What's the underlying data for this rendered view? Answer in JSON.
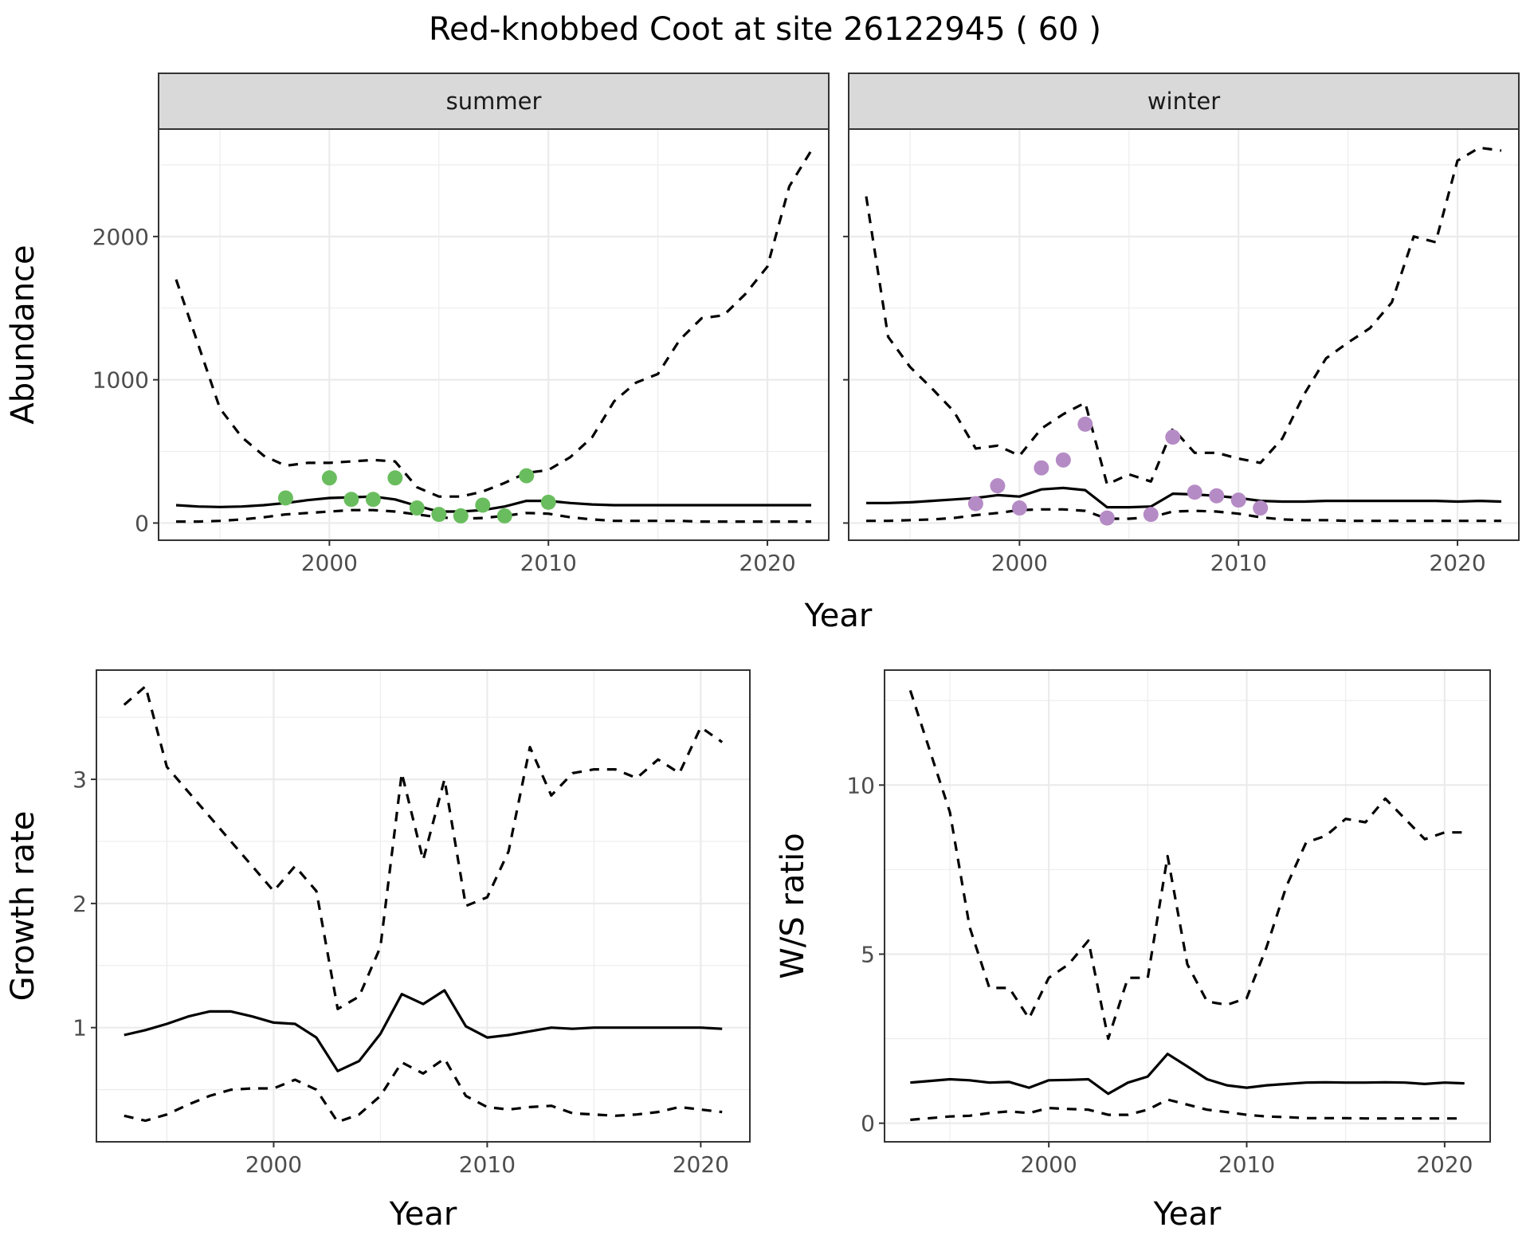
{
  "title": "Red-knobbed Coot at site 26122945 ( 60 )",
  "colors": {
    "summer_points": "#6abd5e",
    "winter_points": "#b58bc5",
    "strip_bg": "#d9d9d9"
  },
  "chart_data": [
    {
      "type": "line",
      "panel": "summer",
      "strip_label": "summer",
      "ylabel": "Abundance",
      "xlabel": "",
      "xlim": [
        1992.2,
        2022.8
      ],
      "ylim": [
        -120,
        2750
      ],
      "x_ticks": [
        2000,
        2010,
        2020
      ],
      "y_ticks": [
        0,
        1000,
        2000
      ],
      "x": [
        1993,
        1994,
        1995,
        1996,
        1997,
        1998,
        1999,
        2000,
        2001,
        2002,
        2003,
        2004,
        2005,
        2006,
        2007,
        2008,
        2009,
        2010,
        2011,
        2012,
        2013,
        2014,
        2015,
        2016,
        2017,
        2018,
        2019,
        2020,
        2021,
        2022
      ],
      "series": [
        {
          "role": "mean",
          "values": [
            125,
            115,
            112,
            115,
            125,
            140,
            160,
            175,
            180,
            185,
            165,
            120,
            80,
            80,
            90,
            115,
            155,
            155,
            140,
            130,
            125,
            125,
            125,
            125,
            125,
            125,
            125,
            125,
            125,
            125
          ]
        },
        {
          "role": "upper",
          "values": [
            1700,
            1250,
            800,
            600,
            470,
            400,
            420,
            420,
            430,
            440,
            430,
            250,
            185,
            185,
            220,
            280,
            350,
            370,
            460,
            600,
            850,
            980,
            1040,
            1280,
            1430,
            1450,
            1600,
            1790,
            2350,
            2600
          ]
        },
        {
          "role": "lower",
          "values": [
            10,
            10,
            15,
            25,
            40,
            60,
            70,
            80,
            90,
            90,
            80,
            60,
            40,
            30,
            35,
            50,
            70,
            65,
            40,
            25,
            15,
            15,
            15,
            15,
            10,
            10,
            10,
            10,
            10,
            10
          ]
        }
      ],
      "points": {
        "x": [
          1998,
          2000,
          2001,
          2002,
          2003,
          2004,
          2005,
          2006,
          2007,
          2008,
          2009,
          2010
        ],
        "y": [
          175,
          315,
          165,
          165,
          315,
          105,
          60,
          50,
          125,
          50,
          330,
          145
        ]
      }
    },
    {
      "type": "line",
      "panel": "winter",
      "strip_label": "winter",
      "ylabel": "",
      "xlabel": "",
      "xlim": [
        1992.2,
        2022.8
      ],
      "ylim": [
        -120,
        2750
      ],
      "x_ticks": [
        2000,
        2010,
        2020
      ],
      "y_ticks": [
        0,
        1000,
        2000
      ],
      "x": [
        1993,
        1994,
        1995,
        1996,
        1997,
        1998,
        1999,
        2000,
        2001,
        2002,
        2003,
        2004,
        2005,
        2006,
        2007,
        2008,
        2009,
        2010,
        2011,
        2012,
        2013,
        2014,
        2015,
        2016,
        2017,
        2018,
        2019,
        2020,
        2021,
        2022
      ],
      "series": [
        {
          "role": "mean",
          "values": [
            140,
            140,
            145,
            155,
            165,
            175,
            195,
            185,
            235,
            245,
            230,
            110,
            110,
            115,
            205,
            200,
            190,
            175,
            155,
            150,
            150,
            155,
            155,
            155,
            155,
            155,
            155,
            150,
            155,
            150
          ]
        },
        {
          "role": "upper",
          "values": [
            2280,
            1300,
            1090,
            940,
            780,
            520,
            540,
            470,
            660,
            760,
            840,
            270,
            340,
            290,
            660,
            490,
            490,
            450,
            420,
            590,
            900,
            1150,
            1260,
            1360,
            1540,
            2000,
            1960,
            2530,
            2620,
            2600
          ]
        },
        {
          "role": "lower",
          "values": [
            15,
            15,
            20,
            25,
            35,
            55,
            70,
            90,
            95,
            95,
            85,
            30,
            30,
            40,
            80,
            85,
            80,
            65,
            40,
            25,
            20,
            20,
            15,
            15,
            15,
            15,
            15,
            15,
            15,
            15
          ]
        }
      ],
      "points": {
        "x": [
          1998,
          1999,
          2000,
          2001,
          2002,
          2003,
          2004,
          2006,
          2007,
          2008,
          2009,
          2010,
          2011
        ],
        "y": [
          135,
          260,
          105,
          385,
          440,
          690,
          35,
          60,
          600,
          215,
          190,
          160,
          105
        ]
      }
    },
    {
      "type": "line",
      "panel": "growth",
      "ylabel": "Growth rate",
      "xlabel": "Year",
      "xlim": [
        1991.7,
        2022.3
      ],
      "ylim": [
        0.08,
        3.88
      ],
      "x_ticks": [
        2000,
        2010,
        2020
      ],
      "y_ticks": [
        1,
        2,
        3
      ],
      "x": [
        1993,
        1994,
        1995,
        1996,
        1997,
        1998,
        1999,
        2000,
        2001,
        2002,
        2003,
        2004,
        2005,
        2006,
        2007,
        2008,
        2009,
        2010,
        2011,
        2012,
        2013,
        2014,
        2015,
        2016,
        2017,
        2018,
        2019,
        2020,
        2021
      ],
      "series": [
        {
          "role": "mean",
          "values": [
            0.94,
            0.98,
            1.03,
            1.09,
            1.13,
            1.13,
            1.09,
            1.04,
            1.03,
            0.92,
            0.65,
            0.73,
            0.95,
            1.27,
            1.19,
            1.3,
            1.01,
            0.92,
            0.94,
            0.97,
            1.0,
            0.99,
            1.0,
            1.0,
            1.0,
            1.0,
            1.0,
            1.0,
            0.99
          ]
        },
        {
          "role": "upper",
          "values": [
            3.6,
            3.75,
            3.1,
            2.9,
            2.7,
            2.5,
            2.3,
            2.1,
            2.3,
            2.1,
            1.15,
            1.25,
            1.65,
            3.05,
            2.35,
            3.0,
            1.98,
            2.05,
            2.42,
            3.26,
            2.87,
            3.05,
            3.08,
            3.08,
            3.01,
            3.16,
            3.05,
            3.42,
            3.3
          ]
        },
        {
          "role": "lower",
          "values": [
            0.29,
            0.25,
            0.3,
            0.38,
            0.45,
            0.5,
            0.51,
            0.51,
            0.58,
            0.5,
            0.24,
            0.3,
            0.45,
            0.72,
            0.63,
            0.75,
            0.45,
            0.36,
            0.34,
            0.36,
            0.37,
            0.31,
            0.3,
            0.29,
            0.3,
            0.32,
            0.36,
            0.34,
            0.32
          ]
        }
      ]
    },
    {
      "type": "line",
      "panel": "ws_ratio",
      "ylabel": "W/S ratio",
      "xlabel": "Year",
      "xlim": [
        1991.7,
        2022.3
      ],
      "ylim": [
        -0.55,
        13.4
      ],
      "x_ticks": [
        2000,
        2010,
        2020
      ],
      "y_ticks": [
        0,
        5,
        10
      ],
      "x": [
        1993,
        1994,
        1995,
        1996,
        1997,
        1998,
        1999,
        2000,
        2001,
        2002,
        2003,
        2004,
        2005,
        2006,
        2007,
        2008,
        2009,
        2010,
        2011,
        2012,
        2013,
        2014,
        2015,
        2016,
        2017,
        2018,
        2019,
        2020,
        2021
      ],
      "series": [
        {
          "role": "mean",
          "values": [
            1.2,
            1.25,
            1.3,
            1.27,
            1.2,
            1.22,
            1.05,
            1.27,
            1.28,
            1.3,
            0.87,
            1.2,
            1.38,
            2.05,
            1.68,
            1.3,
            1.12,
            1.05,
            1.12,
            1.16,
            1.2,
            1.21,
            1.2,
            1.2,
            1.21,
            1.2,
            1.16,
            1.2,
            1.18
          ]
        },
        {
          "role": "upper",
          "values": [
            12.8,
            11.0,
            9.2,
            5.8,
            4.0,
            4.0,
            3.1,
            4.3,
            4.7,
            5.4,
            2.5,
            4.3,
            4.3,
            7.9,
            4.7,
            3.6,
            3.5,
            3.7,
            5.2,
            7.0,
            8.3,
            8.5,
            9.0,
            8.9,
            9.6,
            9.0,
            8.4,
            8.6,
            8.6
          ]
        },
        {
          "role": "lower",
          "values": [
            0.1,
            0.15,
            0.2,
            0.22,
            0.3,
            0.35,
            0.3,
            0.45,
            0.42,
            0.4,
            0.25,
            0.25,
            0.4,
            0.7,
            0.55,
            0.4,
            0.33,
            0.25,
            0.2,
            0.18,
            0.15,
            0.15,
            0.15,
            0.14,
            0.14,
            0.14,
            0.14,
            0.14,
            0.14
          ]
        }
      ]
    }
  ]
}
